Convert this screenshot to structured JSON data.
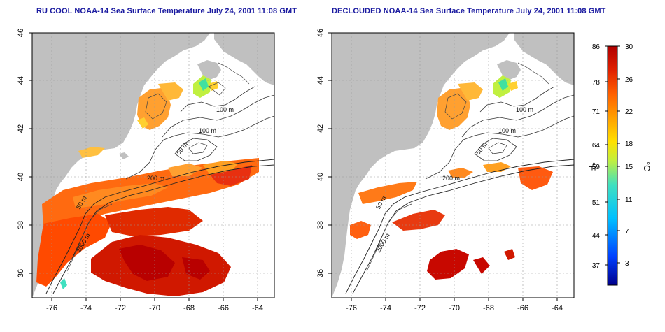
{
  "panels": [
    {
      "title": "RU COOL NOAA-14 Sea Surface Temperature July 24, 2001 11:08 GMT",
      "x_ticks": [
        "-76",
        "-74",
        "-72",
        "-70",
        "-68",
        "-66",
        "-64"
      ],
      "y_ticks": [
        "36",
        "38",
        "40",
        "42",
        "44",
        "46"
      ],
      "contour_labels": [
        "100 m",
        "100 m",
        "50 m",
        "200 m",
        "50 m",
        "2000 m"
      ]
    },
    {
      "title": "DECLOUDED NOAA-14 Sea Surface Temperature July 24, 2001 11:08 GMT",
      "x_ticks": [
        "-76",
        "-74",
        "-72",
        "-70",
        "-68",
        "-66",
        "-64"
      ],
      "y_ticks": [
        "36",
        "38",
        "40",
        "42",
        "44",
        "46"
      ],
      "contour_labels": [
        "100 m",
        "100 m",
        "50 m",
        "200 m",
        "50 m",
        "2000 m"
      ]
    }
  ],
  "colorbar": {
    "f_unit": "°F",
    "c_unit": "°C",
    "f_ticks": [
      "86",
      "78",
      "71",
      "64",
      "59",
      "51",
      "44",
      "37"
    ],
    "c_ticks": [
      "30",
      "26",
      "22",
      "18",
      "15",
      "11",
      "7",
      "3"
    ],
    "colors": [
      "#00008b",
      "#0040ff",
      "#00c0ff",
      "#40e0c0",
      "#c0f040",
      "#ffe000",
      "#ffa000",
      "#ff6000",
      "#e02000",
      "#b00000"
    ]
  },
  "colors": {
    "land": "#c0c0c0",
    "ocean": "#ffffff",
    "title": "#1a1aa0"
  }
}
